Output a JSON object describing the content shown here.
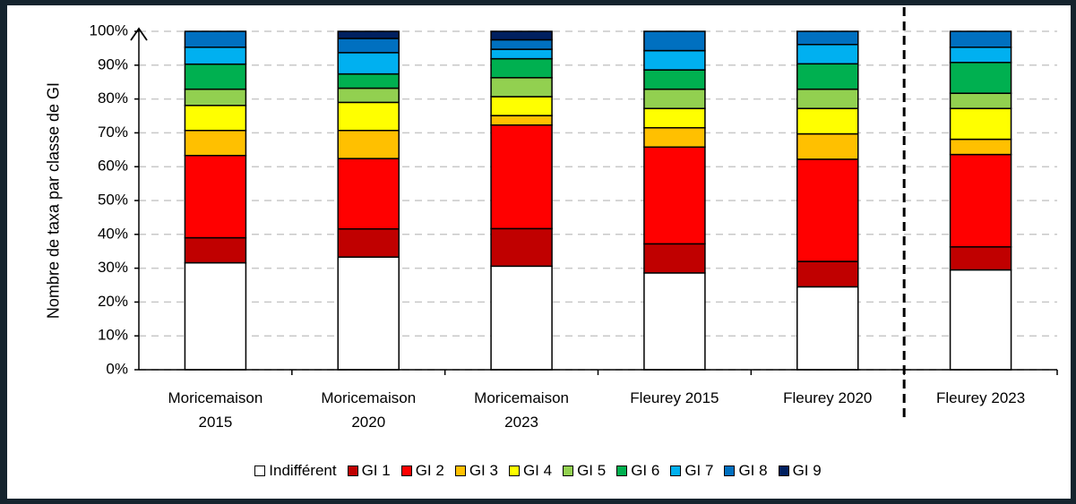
{
  "chart_data": {
    "type": "stacked_bar",
    "y_label": "Nombre de taxa par classe de GI",
    "categories": [
      "Moricemaison 2015",
      "Moricemaison 2020",
      "Moricemaison 2023",
      "Fleurey 2015",
      "Fleurey 2020",
      "Fleurey 2023"
    ],
    "series": [
      {
        "name": "Indifférent",
        "color": "#ffffff",
        "values": [
          31.6,
          33.3,
          30.6,
          28.6,
          24.5,
          29.5
        ]
      },
      {
        "name": "GI 1",
        "color": "#c00000",
        "values": [
          7.4,
          8.3,
          11.1,
          8.6,
          7.5,
          6.8
        ]
      },
      {
        "name": "GI 2",
        "color": "#ff0000",
        "values": [
          24.3,
          20.8,
          30.6,
          28.6,
          30.2,
          27.3
        ]
      },
      {
        "name": "GI 3",
        "color": "#ffc000",
        "values": [
          7.4,
          8.3,
          2.8,
          5.7,
          7.5,
          4.5
        ]
      },
      {
        "name": "GI 4",
        "color": "#ffff00",
        "values": [
          7.4,
          8.3,
          5.6,
          5.7,
          7.5,
          9.1
        ]
      },
      {
        "name": "GI 5",
        "color": "#92d050",
        "values": [
          4.8,
          4.2,
          5.6,
          5.7,
          5.7,
          4.5
        ]
      },
      {
        "name": "GI 6",
        "color": "#00b050",
        "values": [
          7.4,
          4.2,
          5.6,
          5.7,
          7.5,
          9.1
        ]
      },
      {
        "name": "GI 7",
        "color": "#00b0f0",
        "values": [
          5.0,
          6.3,
          2.8,
          5.7,
          5.7,
          4.5
        ]
      },
      {
        "name": "GI 8",
        "color": "#0070c0",
        "values": [
          4.7,
          4.2,
          2.8,
          5.7,
          3.9,
          4.7
        ]
      },
      {
        "name": "GI 9",
        "color": "#002060",
        "values": [
          0,
          2.1,
          2.5,
          0,
          0,
          0
        ]
      }
    ],
    "ylim": [
      0,
      100
    ],
    "yticks": [
      {
        "value": 0,
        "label": "0%"
      },
      {
        "value": 10,
        "label": "10%"
      },
      {
        "value": 20,
        "label": "20%"
      },
      {
        "value": 30,
        "label": "30%"
      },
      {
        "value": 40,
        "label": "40%"
      },
      {
        "value": 50,
        "label": "50%"
      },
      {
        "value": 60,
        "label": "60%"
      },
      {
        "value": 70,
        "label": "70%"
      },
      {
        "value": 80,
        "label": "80%"
      },
      {
        "value": 90,
        "label": "90%"
      },
      {
        "value": 100,
        "label": "100%"
      }
    ],
    "grid": true,
    "legend": "bottom"
  }
}
